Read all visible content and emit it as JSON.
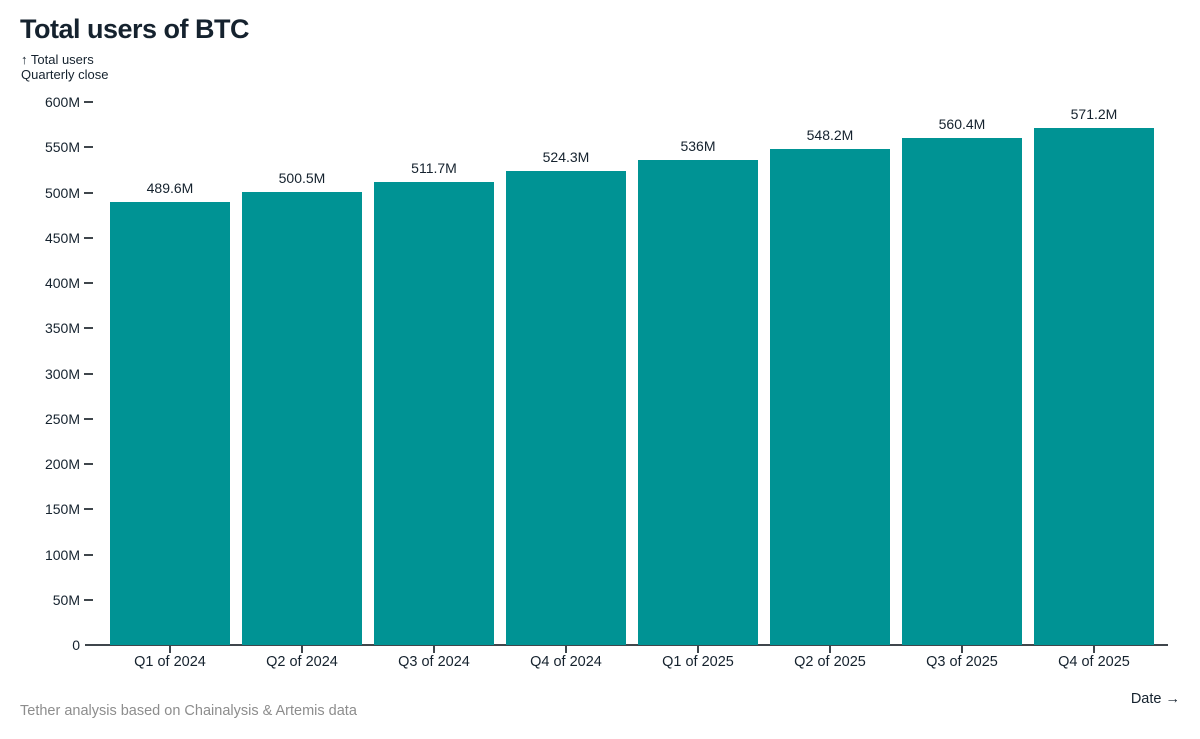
{
  "title": "Total users of BTC",
  "subtitle": {
    "line1": "↑ Total users",
    "line2": "Quarterly close"
  },
  "footer": {
    "source": "Tether analysis based on Chainalysis & Artemis data",
    "x_axis_label": "Date →"
  },
  "colors": {
    "bar": "#009394",
    "text_dark": "#15222e",
    "muted_text": "#8d8d8d",
    "axis_line": "#3f464c"
  },
  "chart_data": {
    "type": "bar",
    "title": "Total users of BTC",
    "ylabel": "Total users",
    "xlabel": "Date",
    "categories": [
      "Q1 of 2024",
      "Q2 of 2024",
      "Q3 of 2024",
      "Q4 of 2024",
      "Q1 of 2025",
      "Q2 of 2025",
      "Q3 of 2025",
      "Q4 of 2025"
    ],
    "values": [
      489.6,
      500.5,
      511.7,
      524.3,
      536,
      548.2,
      560.4,
      571.2
    ],
    "value_labels": [
      "489.6M",
      "500.5M",
      "511.7M",
      "524.3M",
      "536M",
      "548.2M",
      "560.4M",
      "571.2M"
    ],
    "unit": "M",
    "ylim": [
      0,
      600
    ],
    "y_tick_step": 50,
    "y_tick_labels": [
      "0",
      "50M",
      "100M",
      "150M",
      "200M",
      "250M",
      "300M",
      "350M",
      "400M",
      "450M",
      "500M",
      "550M",
      "600M"
    ],
    "grid": false,
    "legend": false,
    "bar_color": "#009394"
  }
}
